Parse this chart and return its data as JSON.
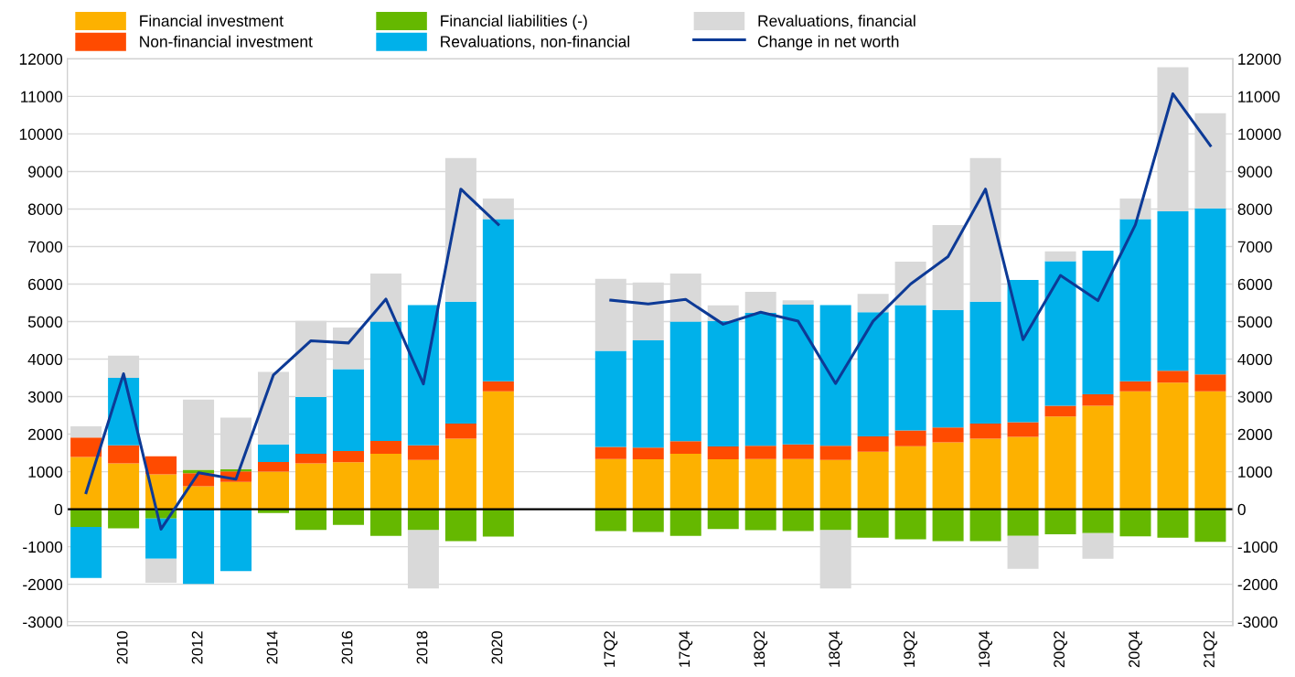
{
  "chart_data": {
    "type": "bar",
    "stacked": true,
    "categories": [
      null,
      "2010",
      null,
      "2012",
      null,
      "2014",
      null,
      "2016",
      null,
      "2018",
      null,
      "2020",
      null,
      null,
      "17Q2",
      null,
      "17Q4",
      null,
      "18Q2",
      null,
      "18Q4",
      null,
      "19Q2",
      null,
      "19Q4",
      null,
      "20Q2",
      null,
      "20Q4",
      null,
      "21Q2"
    ],
    "series": [
      {
        "name": "Financial investment",
        "color": "#fdb100",
        "values": [
          1390,
          1220,
          930,
          610,
          730,
          1000,
          1220,
          1250,
          1480,
          1310,
          1880,
          3140,
          null,
          null,
          1340,
          1330,
          1480,
          1330,
          1340,
          1340,
          1310,
          1530,
          1680,
          1780,
          1880,
          1930,
          2470,
          2760,
          3140,
          3370,
          3140
        ]
      },
      {
        "name": "Non-financial investment",
        "color": "#ff4b00",
        "values": [
          520,
          480,
          480,
          350,
          280,
          260,
          260,
          300,
          340,
          390,
          400,
          270,
          null,
          null,
          320,
          310,
          330,
          340,
          350,
          390,
          380,
          410,
          420,
          400,
          400,
          390,
          290,
          300,
          270,
          320,
          450
        ]
      },
      {
        "name": "Financial liabilities (-)",
        "color": "#65b800",
        "values": [
          -470,
          -510,
          -250,
          90,
          50,
          -100,
          -550,
          -420,
          -710,
          -560,
          -850,
          -730,
          null,
          null,
          -580,
          -610,
          -710,
          -530,
          -560,
          -580,
          -560,
          -760,
          -800,
          -850,
          -850,
          -710,
          -670,
          -640,
          -720,
          -760,
          -870
        ]
      },
      {
        "name": "Revaluations, non-financial",
        "color": "#00b1ea",
        "values": [
          -1360,
          1800,
          -1070,
          -1990,
          -1650,
          470,
          1510,
          2180,
          3180,
          3740,
          3250,
          4320,
          null,
          null,
          2560,
          2860,
          3190,
          3350,
          3540,
          3720,
          3750,
          3310,
          3340,
          3130,
          3250,
          3790,
          3850,
          3830,
          4320,
          4250,
          4430
        ]
      },
      {
        "name": "Revaluations, financial",
        "color": "#d9d9d9",
        "values": [
          300,
          590,
          -640,
          1870,
          1380,
          1930,
          2030,
          1110,
          1280,
          -1550,
          3830,
          550,
          null,
          null,
          1920,
          1540,
          1280,
          410,
          560,
          120,
          -1550,
          490,
          1160,
          2260,
          3830,
          -880,
          260,
          -680,
          550,
          3840,
          2530
        ]
      },
      {
        "name": "Change in net worth",
        "type": "line",
        "color": "#0d3a96",
        "values": [
          440,
          3610,
          -530,
          970,
          800,
          3580,
          4490,
          4430,
          5600,
          3340,
          8530,
          7590,
          null,
          null,
          5570,
          5470,
          5590,
          4930,
          5250,
          5010,
          3350,
          5010,
          6000,
          6730,
          8530,
          4520,
          6230,
          5560,
          7580,
          11070,
          9690
        ]
      }
    ],
    "ylim": [
      -3100,
      12000
    ],
    "yticks": [
      -3000,
      -2000,
      -1000,
      0,
      1000,
      2000,
      3000,
      4000,
      5000,
      6000,
      7000,
      8000,
      9000,
      10000,
      11000,
      12000
    ],
    "y2lim": [
      -3100,
      12000
    ],
    "y2ticks": [
      -3000,
      -2000,
      -1000,
      0,
      1000,
      2000,
      3000,
      4000,
      5000,
      6000,
      7000,
      8000,
      9000,
      10000,
      11000,
      12000
    ],
    "grid": "y",
    "legend": "top"
  }
}
